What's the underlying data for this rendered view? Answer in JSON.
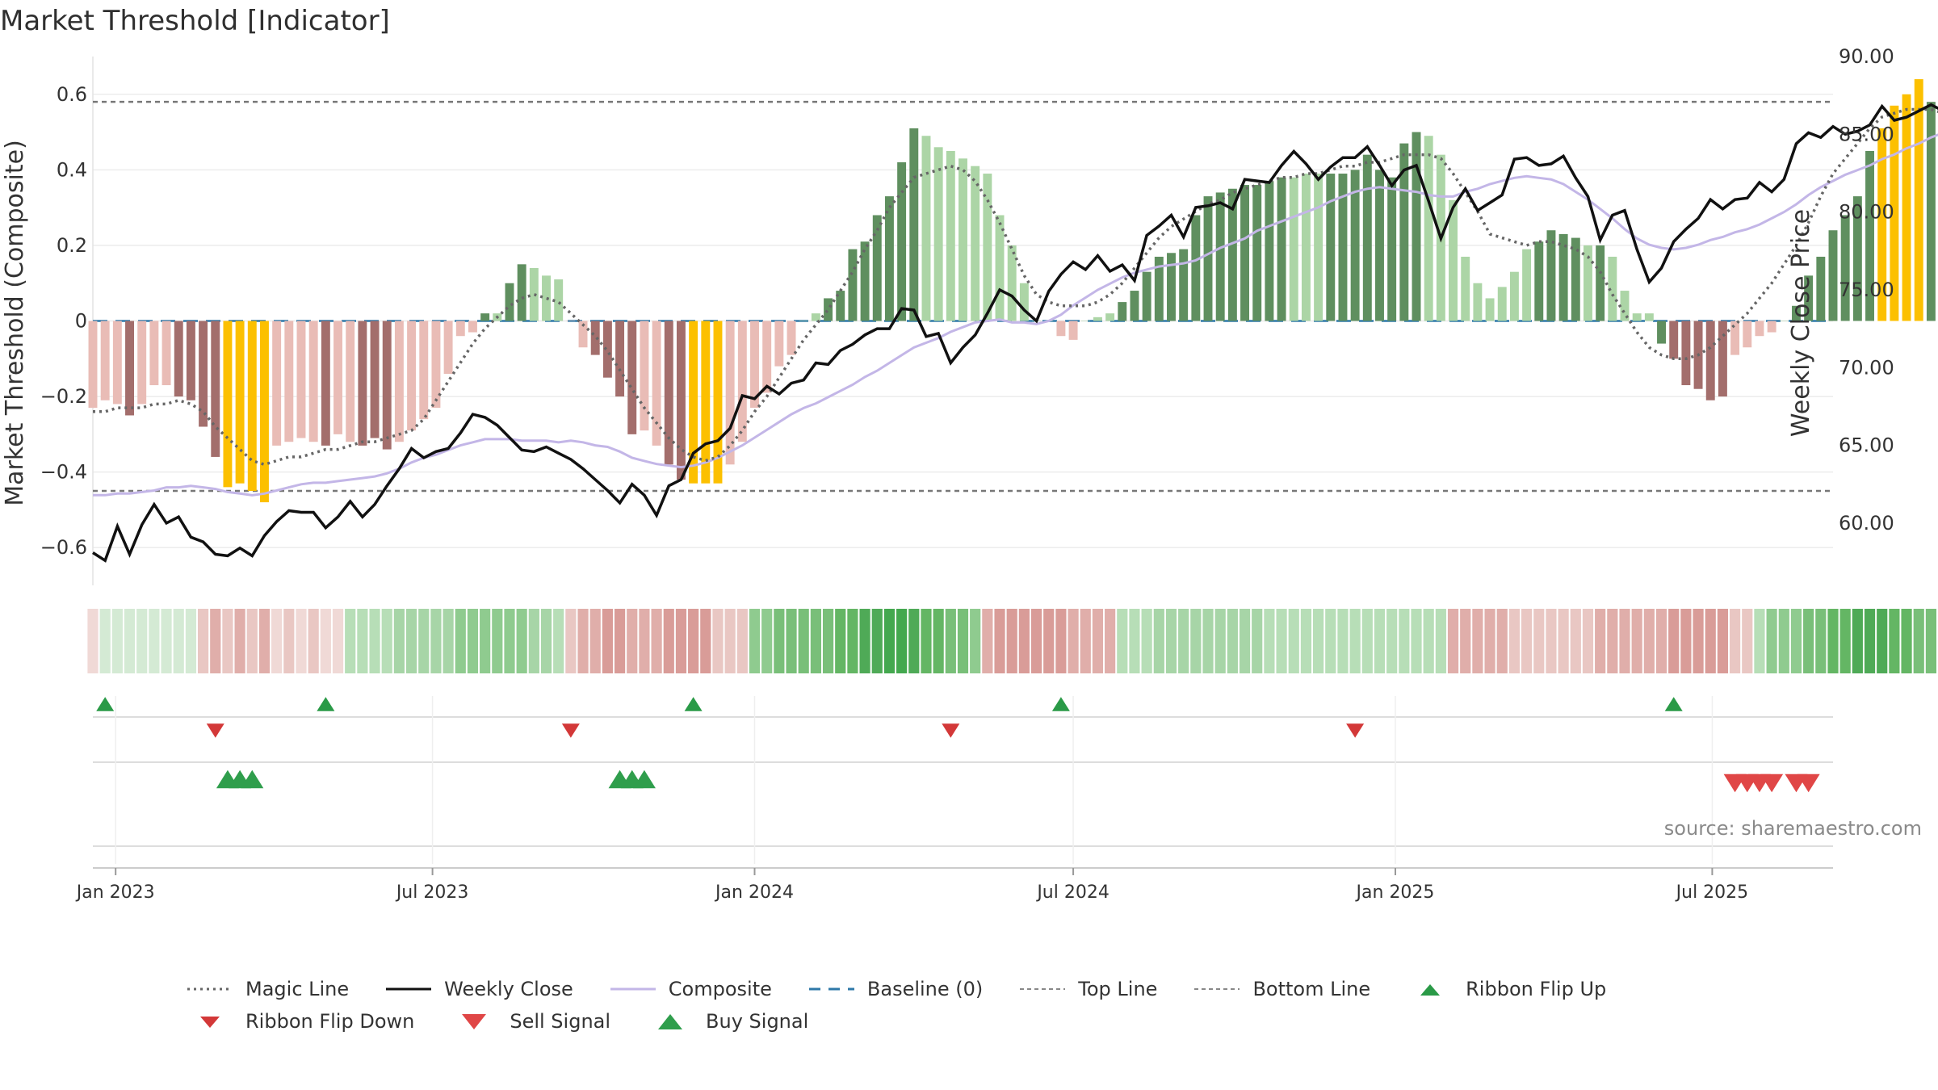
{
  "title": "Market Threshold [Indicator]",
  "source": "source: sharemaestro.com",
  "colors": {
    "strong_up": "#5f8f5f",
    "light_up": "#acd5a6",
    "strong_down": "#a36e6c",
    "light_down": "#e9bcb6",
    "extreme": "#fcc000",
    "weekly_close": "#111111",
    "composite": "#c3b6e7",
    "magic_line": "#666666",
    "baseline": "#2e78a8",
    "top_bottom": "#777777",
    "signal_up": "#2a9a47",
    "signal_down": "#d33838"
  },
  "legend": [
    {
      "id": "magic",
      "label": "Magic Line",
      "symbol": "dotted-line"
    },
    {
      "id": "close",
      "label": "Weekly Close",
      "symbol": "solid-line"
    },
    {
      "id": "composite",
      "label": "Composite",
      "symbol": "lavender-line"
    },
    {
      "id": "baseline",
      "label": "Baseline (0)",
      "symbol": "dashed-line"
    },
    {
      "id": "top",
      "label": "Top Line",
      "symbol": "dashed-gray-line"
    },
    {
      "id": "bottom",
      "label": "Bottom Line",
      "symbol": "dashed-gray-line"
    },
    {
      "id": "flipup",
      "label": "Ribbon Flip Up",
      "symbol": "green-triangle-up"
    },
    {
      "id": "flipdown",
      "label": "Ribbon Flip Down",
      "symbol": "red-triangle-down"
    },
    {
      "id": "sell",
      "label": "Sell Signal",
      "symbol": "red-triangle-down-large"
    },
    {
      "id": "buy",
      "label": "Buy Signal",
      "symbol": "green-triangle-up-large"
    }
  ],
  "chart_data": {
    "type": "bar",
    "title": "Market Threshold [Indicator]",
    "ylabel": "Market Threshold (Composite)",
    "y2label": "Weekly Close Price",
    "ylim": [
      -0.7,
      0.7
    ],
    "y2lim": [
      56.0,
      90.0
    ],
    "yticks": [
      0.6,
      0.4,
      0.2,
      0,
      -0.2,
      -0.4,
      -0.6
    ],
    "yticklabels": [
      "0.6",
      "0.4",
      "0.2",
      "0",
      "−0.2",
      "−0.4",
      "−0.6"
    ],
    "y2ticks": [
      90,
      85,
      80,
      75,
      70,
      65,
      60
    ],
    "y2ticklabels": [
      "90.00",
      "85.00",
      "80.00",
      "75.00",
      "70.00",
      "65.00",
      "60.00"
    ],
    "x_start": "2022-12-19",
    "x_end": "2025-09-08",
    "xticks": [
      "2023-01-01",
      "2023-07-01",
      "2024-01-01",
      "2024-07-01",
      "2025-01-01",
      "2025-07-01"
    ],
    "xticklabels": [
      "Jan 2023",
      "Jul 2023",
      "Jan 2024",
      "Jul 2024",
      "Jan 2025",
      "Jul 2025"
    ],
    "top_line": 0.58,
    "bottom_line": -0.45,
    "baseline": 0,
    "grid": true,
    "legend_position": "bottom",
    "series": [
      {
        "name": "Composite",
        "kind": "bar",
        "date_start": "2022-12-19",
        "interval_days": 7,
        "values": [
          -0.23,
          -0.21,
          -0.22,
          -0.25,
          -0.22,
          -0.17,
          -0.17,
          -0.2,
          -0.21,
          -0.28,
          -0.36,
          -0.44,
          -0.43,
          -0.45,
          -0.48,
          -0.33,
          -0.32,
          -0.31,
          -0.32,
          -0.33,
          -0.3,
          -0.32,
          -0.33,
          -0.31,
          -0.34,
          -0.32,
          -0.29,
          -0.26,
          -0.23,
          -0.14,
          -0.04,
          -0.03,
          0.02,
          0.02,
          0.1,
          0.15,
          0.14,
          0.12,
          0.11,
          0.0,
          -0.07,
          -0.09,
          -0.15,
          -0.2,
          -0.3,
          -0.29,
          -0.33,
          -0.38,
          -0.42,
          -0.43,
          -0.43,
          -0.43,
          -0.38,
          -0.32,
          -0.23,
          -0.19,
          -0.12,
          -0.09,
          0.0,
          0.02,
          0.06,
          0.08,
          0.19,
          0.21,
          0.28,
          0.33,
          0.42,
          0.51,
          0.49,
          0.46,
          0.45,
          0.43,
          0.41,
          0.39,
          0.28,
          0.2,
          0.1,
          0.0,
          0.0,
          -0.04,
          -0.05,
          0.0,
          0.01,
          0.02,
          0.05,
          0.08,
          0.13,
          0.17,
          0.18,
          0.19,
          0.28,
          0.33,
          0.34,
          0.35,
          0.36,
          0.36,
          0.37,
          0.38,
          0.38,
          0.39,
          0.39,
          0.39,
          0.39,
          0.4,
          0.44,
          0.4,
          0.38,
          0.47,
          0.5,
          0.49,
          0.44,
          0.32,
          0.17,
          0.1,
          0.06,
          0.09,
          0.13,
          0.19,
          0.21,
          0.24,
          0.23,
          0.22,
          0.2,
          0.2,
          0.17,
          0.08,
          0.02,
          0.02,
          -0.06,
          -0.1,
          -0.17,
          -0.18,
          -0.21,
          -0.2,
          -0.09,
          -0.07,
          -0.04,
          -0.03,
          0.0,
          0.04,
          0.12,
          0.17,
          0.24,
          0.28,
          0.33,
          0.45,
          0.51,
          0.57,
          0.6,
          0.64,
          0.58,
          0.56,
          0.48,
          0.62,
          0.57,
          0.48,
          0.44,
          0.49,
          0.5
        ],
        "colors": [
          "ld",
          "ld",
          "ld",
          "sd",
          "ld",
          "ld",
          "ld",
          "sd",
          "sd",
          "sd",
          "sd",
          "ex",
          "ex",
          "ex",
          "ex",
          "ld",
          "ld",
          "ld",
          "ld",
          "sd",
          "ld",
          "ld",
          "sd",
          "sd",
          "sd",
          "ld",
          "ld",
          "ld",
          "ld",
          "ld",
          "ld",
          "ld",
          "su",
          "lu",
          "su",
          "su",
          "lu",
          "lu",
          "lu",
          "ld",
          "ld",
          "sd",
          "sd",
          "sd",
          "sd",
          "ld",
          "ld",
          "sd",
          "sd",
          "ex",
          "ex",
          "ex",
          "ld",
          "ld",
          "ld",
          "ld",
          "ld",
          "ld",
          "lu",
          "lu",
          "su",
          "su",
          "su",
          "su",
          "su",
          "su",
          "su",
          "su",
          "lu",
          "lu",
          "lu",
          "lu",
          "lu",
          "lu",
          "lu",
          "lu",
          "lu",
          "lu",
          "lu",
          "ld",
          "ld",
          "lu",
          "lu",
          "lu",
          "su",
          "su",
          "su",
          "su",
          "su",
          "su",
          "su",
          "su",
          "su",
          "su",
          "su",
          "su",
          "su",
          "su",
          "lu",
          "lu",
          "lu",
          "su",
          "su",
          "su",
          "su",
          "su",
          "su",
          "su",
          "su",
          "lu",
          "lu",
          "lu",
          "lu",
          "lu",
          "lu",
          "lu",
          "lu",
          "lu",
          "su",
          "su",
          "su",
          "su",
          "lu",
          "su",
          "lu",
          "lu",
          "lu",
          "lu",
          "su",
          "sd",
          "sd",
          "sd",
          "sd",
          "sd",
          "ld",
          "ld",
          "ld",
          "ld",
          "lu",
          "su",
          "su",
          "su",
          "su",
          "su",
          "su",
          "su",
          "ex",
          "ex",
          "ex",
          "ex",
          "su",
          "ex",
          "ex",
          "su",
          "ex",
          "ex",
          "lu",
          "lu",
          "su"
        ]
      },
      {
        "name": "Weekly Close",
        "kind": "line",
        "axis": "right",
        "date_start": "2022-12-19",
        "interval_days": 7,
        "values": [
          58.1,
          57.6,
          59.8,
          58.0,
          59.9,
          61.2,
          60.0,
          60.4,
          59.1,
          58.8,
          58.0,
          57.9,
          58.4,
          57.9,
          59.2,
          60.1,
          60.8,
          60.7,
          60.7,
          59.7,
          60.4,
          61.4,
          60.4,
          61.2,
          62.4,
          63.5,
          64.8,
          64.2,
          64.6,
          64.8,
          65.8,
          67.0,
          66.8,
          66.3,
          65.5,
          64.7,
          64.6,
          64.9,
          64.5,
          64.1,
          63.5,
          62.8,
          62.1,
          61.3,
          62.5,
          61.8,
          60.5,
          62.4,
          62.8,
          64.5,
          65.1,
          65.3,
          66.1,
          68.2,
          68.0,
          68.8,
          68.3,
          69.0,
          69.2,
          70.3,
          70.2,
          71.1,
          71.5,
          72.1,
          72.5,
          72.5,
          73.8,
          73.7,
          72.0,
          72.2,
          70.3,
          71.3,
          72.1,
          73.5,
          75.0,
          74.6,
          73.7,
          73.0,
          74.9,
          76.0,
          76.8,
          76.3,
          77.2,
          76.2,
          76.6,
          75.6,
          78.5,
          79.1,
          79.8,
          78.4,
          80.3,
          80.4,
          80.6,
          80.2,
          82.1,
          82.0,
          81.9,
          83.0,
          83.9,
          83.1,
          82.1,
          82.9,
          83.5,
          83.5,
          84.2,
          83.0,
          81.7,
          82.7,
          83.0,
          80.7,
          78.3,
          80.3,
          81.5,
          80.1,
          80.6,
          81.1,
          83.4,
          83.5,
          83.0,
          83.1,
          83.6,
          82.2,
          81.0,
          78.2,
          79.8,
          80.1,
          77.6,
          75.5,
          76.4,
          78.1,
          78.9,
          79.6,
          80.8,
          80.2,
          80.8,
          80.9,
          81.9,
          81.3,
          82.1,
          84.4,
          85.1,
          84.8,
          85.5,
          85.0,
          85.2,
          85.6,
          86.8,
          85.9,
          86.1,
          86.5,
          86.9,
          86.5,
          87.4,
          87.3,
          88.4,
          89.1
        ]
      },
      {
        "name": "Composite",
        "kind": "line",
        "axis": "right",
        "date_start": "2022-12-19",
        "interval_days": 7,
        "values": [
          61.8,
          61.8,
          61.9,
          61.9,
          62.0,
          62.1,
          62.3,
          62.3,
          62.4,
          62.3,
          62.2,
          62.0,
          61.9,
          61.8,
          61.9,
          62.1,
          62.3,
          62.5,
          62.6,
          62.6,
          62.7,
          62.8,
          62.9,
          63.0,
          63.2,
          63.5,
          63.9,
          64.2,
          64.4,
          64.7,
          65.0,
          65.2,
          65.4,
          65.4,
          65.4,
          65.3,
          65.3,
          65.3,
          65.2,
          65.3,
          65.2,
          65.0,
          64.9,
          64.6,
          64.2,
          64.0,
          63.8,
          63.7,
          63.6,
          63.7,
          63.9,
          64.2,
          64.6,
          65.0,
          65.5,
          66.0,
          66.5,
          67.0,
          67.4,
          67.7,
          68.1,
          68.5,
          68.9,
          69.4,
          69.8,
          70.3,
          70.8,
          71.3,
          71.6,
          71.9,
          72.3,
          72.6,
          72.9,
          73.0,
          73.1,
          72.9,
          72.9,
          72.8,
          73.0,
          73.4,
          74.0,
          74.5,
          75.0,
          75.4,
          75.8,
          76.1,
          76.3,
          76.5,
          76.6,
          76.7,
          76.9,
          77.3,
          77.7,
          78.0,
          78.3,
          78.8,
          79.1,
          79.4,
          79.7,
          80.0,
          80.3,
          80.7,
          81.0,
          81.3,
          81.5,
          81.6,
          81.5,
          81.4,
          81.3,
          81.1,
          81.0,
          81.0,
          81.3,
          81.5,
          81.8,
          82.0,
          82.2,
          82.3,
          82.2,
          82.1,
          81.8,
          81.3,
          80.8,
          80.2,
          79.6,
          78.9,
          78.3,
          77.9,
          77.7,
          77.6,
          77.7,
          77.9,
          78.2,
          78.4,
          78.7,
          78.9,
          79.2,
          79.6,
          80.0,
          80.5,
          81.1,
          81.6,
          82.0,
          82.4,
          82.7,
          83.0,
          83.4,
          83.7,
          84.1,
          84.4,
          84.8,
          85.1,
          85.5,
          85.8
        ]
      },
      {
        "name": "Magic Line",
        "kind": "line",
        "axis": "left",
        "date_start": "2022-12-19",
        "interval_days": 7,
        "values": [
          -0.24,
          -0.24,
          -0.23,
          -0.23,
          -0.23,
          -0.22,
          -0.22,
          -0.21,
          -0.22,
          -0.24,
          -0.28,
          -0.31,
          -0.34,
          -0.37,
          -0.38,
          -0.37,
          -0.36,
          -0.36,
          -0.35,
          -0.34,
          -0.34,
          -0.33,
          -0.32,
          -0.32,
          -0.31,
          -0.3,
          -0.29,
          -0.26,
          -0.21,
          -0.16,
          -0.11,
          -0.06,
          -0.02,
          0.01,
          0.04,
          0.06,
          0.07,
          0.06,
          0.05,
          0.02,
          -0.01,
          -0.04,
          -0.08,
          -0.13,
          -0.18,
          -0.23,
          -0.27,
          -0.31,
          -0.34,
          -0.36,
          -0.37,
          -0.36,
          -0.33,
          -0.29,
          -0.24,
          -0.2,
          -0.15,
          -0.1,
          -0.05,
          -0.01,
          0.03,
          0.08,
          0.13,
          0.19,
          0.24,
          0.3,
          0.34,
          0.38,
          0.39,
          0.4,
          0.41,
          0.4,
          0.37,
          0.32,
          0.26,
          0.19,
          0.12,
          0.07,
          0.05,
          0.04,
          0.04,
          0.04,
          0.05,
          0.07,
          0.1,
          0.14,
          0.18,
          0.22,
          0.25,
          0.27,
          0.29,
          0.31,
          0.32,
          0.34,
          0.35,
          0.36,
          0.37,
          0.38,
          0.38,
          0.39,
          0.39,
          0.4,
          0.41,
          0.41,
          0.42,
          0.42,
          0.43,
          0.44,
          0.44,
          0.44,
          0.43,
          0.39,
          0.34,
          0.29,
          0.23,
          0.22,
          0.21,
          0.2,
          0.21,
          0.21,
          0.2,
          0.19,
          0.17,
          0.13,
          0.07,
          0.02,
          -0.03,
          -0.07,
          -0.09,
          -0.1,
          -0.1,
          -0.09,
          -0.07,
          -0.04,
          -0.01,
          0.02,
          0.06,
          0.1,
          0.15,
          0.2,
          0.26,
          0.33,
          0.39,
          0.43,
          0.47,
          0.51,
          0.54,
          0.55,
          0.56,
          0.56,
          0.56,
          0.55,
          0.53
        ]
      }
    ],
    "ribbon": {
      "date_start": "2022-12-19",
      "interval_days": 7,
      "colors": [
        "#f0d9d6",
        "#d4ead4",
        "#d4ead4",
        "#d4ead4",
        "#d4ead4",
        "#d4ead4",
        "#d4ead4",
        "#d4ead4",
        "#d4ead4",
        "#e9c7c3",
        "#e0aeaa",
        "#e9c7c3",
        "#e0aeaa",
        "#e9c7c3",
        "#e0aeaa",
        "#f0d9d6",
        "#e9c7c3",
        "#f0d9d6",
        "#e9c7c3",
        "#f0d9d6",
        "#f0d9d6",
        "#b7deb7",
        "#b7deb7",
        "#b7deb7",
        "#b7deb7",
        "#a7d5a7",
        "#a7d5a7",
        "#a7d5a7",
        "#a7d5a7",
        "#a7d5a7",
        "#8fcb8f",
        "#8fcb8f",
        "#8fcb8f",
        "#8fcb8f",
        "#8fcb8f",
        "#8fcb8f",
        "#a7d5a7",
        "#a7d5a7",
        "#b7deb7",
        "#e9c7c3",
        "#e0aeaa",
        "#e0aeaa",
        "#d99c98",
        "#d99c98",
        "#e0aeaa",
        "#e0aeaa",
        "#e0aeaa",
        "#d99c98",
        "#d99c98",
        "#d99c98",
        "#d99c98",
        "#e9c7c3",
        "#e9c7c3",
        "#e9c7c3",
        "#8fcb8f",
        "#8fcb8f",
        "#79bf79",
        "#79bf79",
        "#79bf79",
        "#79bf79",
        "#79bf79",
        "#64b664",
        "#64b664",
        "#4faa57",
        "#4faa57",
        "#44a84f",
        "#44a84f",
        "#4faa57",
        "#64b664",
        "#64b664",
        "#79bf79",
        "#79bf79",
        "#8fcb8f",
        "#e0aeaa",
        "#d99c98",
        "#d99c98",
        "#d99c98",
        "#d99c98",
        "#d99c98",
        "#d99c98",
        "#e0aeaa",
        "#e0aeaa",
        "#e0aeaa",
        "#e0aeaa",
        "#b7deb7",
        "#b7deb7",
        "#b7deb7",
        "#a7d5a7",
        "#a7d5a7",
        "#a7d5a7",
        "#a7d5a7",
        "#a7d5a7",
        "#a7d5a7",
        "#a7d5a7",
        "#a7d5a7",
        "#a7d5a7",
        "#b7deb7",
        "#b7deb7",
        "#b7deb7",
        "#b7deb7",
        "#b7deb7",
        "#b7deb7",
        "#b7deb7",
        "#b7deb7",
        "#b7deb7",
        "#b7deb7",
        "#b7deb7",
        "#b7deb7",
        "#b7deb7",
        "#b7deb7",
        "#b7deb7",
        "#e0aeaa",
        "#e0aeaa",
        "#e0aeaa",
        "#e0aeaa",
        "#e0aeaa",
        "#e9c7c3",
        "#e9c7c3",
        "#e9c7c3",
        "#e9c7c3",
        "#e9c7c3",
        "#e9c7c3",
        "#e9c7c3",
        "#e0aeaa",
        "#e0aeaa",
        "#e0aeaa",
        "#e0aeaa",
        "#e0aeaa",
        "#e0aeaa",
        "#d99c98",
        "#d99c98",
        "#d99c98",
        "#d99c98",
        "#d99c98",
        "#e9c7c3",
        "#e9c7c3",
        "#b7deb7",
        "#8fcb8f",
        "#8fcb8f",
        "#8fcb8f",
        "#79bf79",
        "#79bf79",
        "#64b664",
        "#64b664",
        "#4faa57",
        "#4faa57",
        "#4faa57",
        "#64b664",
        "#64b664",
        "#79bf79",
        "#79bf79",
        "#8fcb8f",
        "#8fcb8f",
        "#b7deb7",
        "#b7deb7"
      ]
    },
    "ribbon_flip_up": [
      "2022-12-26",
      "2023-05-01",
      "2023-11-27",
      "2024-06-24",
      "2025-06-09"
    ],
    "ribbon_flip_down": [
      "2023-02-27",
      "2023-09-18",
      "2024-04-22",
      "2024-12-09"
    ],
    "buy_signals": [
      "2023-03-06",
      "2023-03-13",
      "2023-03-20",
      "2023-10-16",
      "2023-10-23",
      "2023-10-30"
    ],
    "sell_signals": [
      "2025-07-14",
      "2025-07-21",
      "2025-07-28",
      "2025-08-04",
      "2025-08-18",
      "2025-08-25"
    ]
  }
}
